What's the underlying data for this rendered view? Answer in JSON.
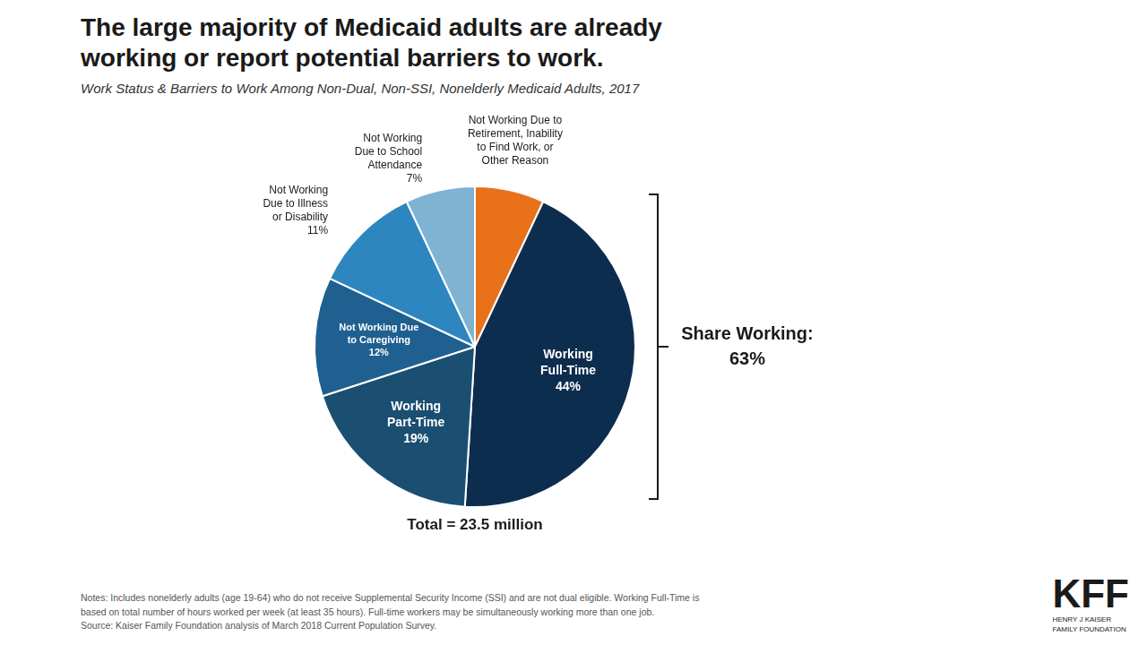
{
  "chart_data": {
    "type": "pie",
    "title": "The large majority of Medicaid adults are already\nworking or report potential barriers to work.",
    "subtitle": "Work Status & Barriers to Work Among Non-Dual, Non-SSI, Nonelderly Medicaid Adults, 2017",
    "categories": [
      "Not Working Due to\nRetirement, Inability\nto Find Work, or\nOther Reason",
      "Working\nFull-Time",
      "Working\nPart-Time",
      "Not Working Due\nto Caregiving",
      "Not Working\nDue to Illness\nor Disability",
      "Not Working\nDue to School\nAttendance"
    ],
    "values": [
      7,
      44,
      19,
      12,
      11,
      7
    ],
    "value_labels": [
      null,
      "44%",
      "19%",
      "12%",
      "11%",
      "7%"
    ],
    "colors": [
      "#e8711a",
      "#0d2d4e",
      "#1a4f72",
      "#1f6090",
      "#2e86c1",
      "#7fb3d3"
    ],
    "data_labels": true,
    "annotations": [
      "Share Working:\n63%",
      "Total = 23.5 million"
    ],
    "notes": [
      "Notes: Includes nonelderly adults (age 19-64) who do not receive Supplemental Security Income (SSI) and are not dual eligible.  Working Full-Time is",
      "based on total number of hours worked per week (at least 35 hours). Full-time workers may be simultaneously working more than one job.",
      "Source: Kaiser Family Foundation analysis of March 2018 Current Population Survey."
    ],
    "logo": [
      "KFF",
      "HENRY J KAISER\nFAMILY FOUNDATION"
    ]
  }
}
